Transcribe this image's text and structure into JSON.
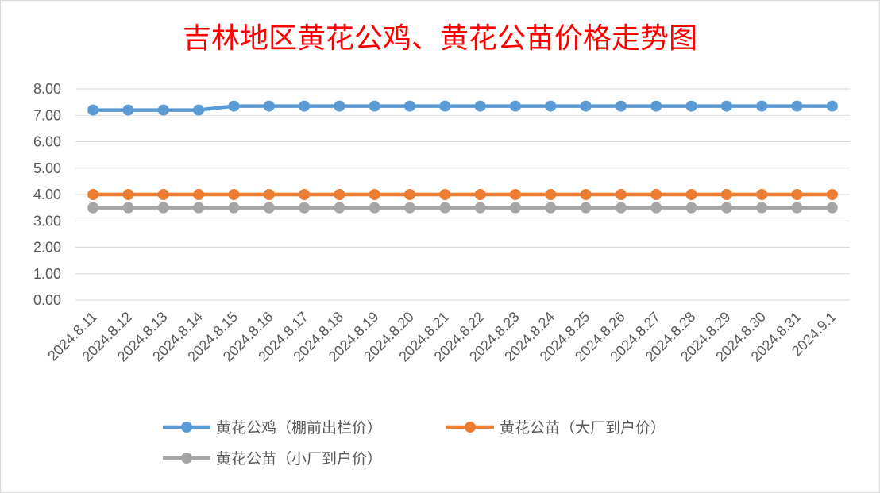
{
  "chart_data": {
    "type": "line",
    "title": "吉林地区黄花公鸡、黄花公苗价格走势图",
    "title_color": "#ff0000",
    "xlabel": "",
    "ylabel": "",
    "ylim": [
      0,
      8
    ],
    "y_ticks": [
      "0.00",
      "1.00",
      "2.00",
      "3.00",
      "4.00",
      "5.00",
      "6.00",
      "7.00",
      "8.00"
    ],
    "grid": true,
    "legend_position": "bottom",
    "categories": [
      "2024.8.11",
      "2024.8.12",
      "2024.8.13",
      "2024.8.14",
      "2024.8.15",
      "2024.8.16",
      "2024.8.17",
      "2024.8.18",
      "2024.8.19",
      "2024.8.20",
      "2024.8.21",
      "2024.8.22",
      "2024.8.23",
      "2024.8.24",
      "2024.8.25",
      "2024.8.26",
      "2024.8.27",
      "2024.8.28",
      "2024.8.29",
      "2024.8.30",
      "2024.8.31",
      "2024.9.1"
    ],
    "series": [
      {
        "name": "黄花公鸡（棚前出栏价）",
        "color": "#5b9bd5",
        "values": [
          7.2,
          7.2,
          7.2,
          7.2,
          7.35,
          7.35,
          7.35,
          7.35,
          7.35,
          7.35,
          7.35,
          7.35,
          7.35,
          7.35,
          7.35,
          7.35,
          7.35,
          7.35,
          7.35,
          7.35,
          7.35,
          7.35
        ]
      },
      {
        "name": "黄花公苗（大厂到户价）",
        "color": "#ed7d31",
        "values": [
          4.0,
          4.0,
          4.0,
          4.0,
          4.0,
          4.0,
          4.0,
          4.0,
          4.0,
          4.0,
          4.0,
          4.0,
          4.0,
          4.0,
          4.0,
          4.0,
          4.0,
          4.0,
          4.0,
          4.0,
          4.0,
          4.0
        ]
      },
      {
        "name": "黄花公苗（小厂到户价）",
        "color": "#a5a5a5",
        "values": [
          3.5,
          3.5,
          3.5,
          3.5,
          3.5,
          3.5,
          3.5,
          3.5,
          3.5,
          3.5,
          3.5,
          3.5,
          3.5,
          3.5,
          3.5,
          3.5,
          3.5,
          3.5,
          3.5,
          3.5,
          3.5,
          3.5
        ]
      }
    ]
  }
}
